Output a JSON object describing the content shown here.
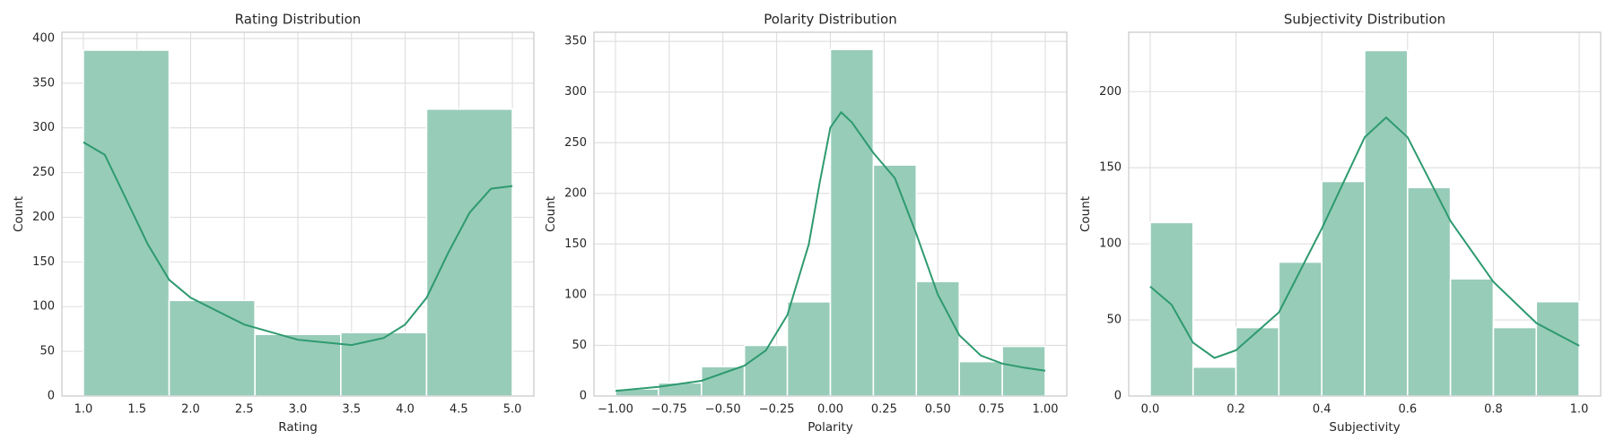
{
  "chart_data": [
    {
      "type": "histogram",
      "title": "Rating Distribution",
      "x_label": "Rating",
      "y_label": "Count",
      "bins": [
        1.0,
        1.8,
        2.6,
        3.4,
        4.2,
        5.0
      ],
      "counts": [
        387,
        107,
        69,
        71,
        321
      ],
      "color": "#97ccb9",
      "line_color": "#2e9a6f",
      "kde": {
        "x": [
          1.0,
          1.2,
          1.4,
          1.6,
          1.8,
          2.0,
          2.5,
          3.0,
          3.5,
          3.8,
          4.0,
          4.2,
          4.4,
          4.6,
          4.8,
          5.0
        ],
        "y": [
          284,
          270,
          220,
          170,
          130,
          110,
          80,
          63,
          57,
          65,
          80,
          110,
          160,
          205,
          232,
          235
        ]
      },
      "xlim": [
        0.8,
        5.2
      ],
      "ylim": [
        0,
        407
      ],
      "xticks": [
        {
          "value": 1.0,
          "label": "1.0"
        },
        1.5,
        {
          "value": 2.0,
          "label": "2.0"
        },
        2.5,
        {
          "value": 3.0,
          "label": "3.0"
        },
        3.5,
        {
          "value": 4.0,
          "label": "4.0"
        },
        4.5,
        {
          "value": 5.0,
          "label": "5.0"
        }
      ],
      "yticks": [
        0,
        50,
        100,
        150,
        200,
        250,
        300,
        350,
        400
      ],
      "grid": true
    },
    {
      "type": "histogram",
      "title": "Polarity Distribution",
      "x_label": "Polarity",
      "y_label": "Count",
      "bins": [
        -1.0,
        -0.8,
        -0.6,
        -0.4,
        -0.2,
        0.0,
        0.2,
        0.4,
        0.6,
        0.8,
        1.0
      ],
      "counts": [
        7,
        13,
        29,
        50,
        93,
        342,
        228,
        113,
        34,
        49
      ],
      "color": "#97ccb9",
      "line_color": "#2e9a6f",
      "kde": {
        "x": [
          -1.0,
          -0.8,
          -0.6,
          -0.4,
          -0.3,
          -0.2,
          -0.1,
          -0.05,
          0.0,
          0.05,
          0.1,
          0.2,
          0.3,
          0.4,
          0.5,
          0.6,
          0.7,
          0.8,
          0.9,
          1.0
        ],
        "y": [
          5,
          9,
          15,
          30,
          45,
          80,
          150,
          210,
          265,
          280,
          270,
          240,
          215,
          160,
          100,
          60,
          40,
          32,
          28,
          25
        ]
      },
      "xlim": [
        -1.1,
        1.1
      ],
      "ylim": [
        0,
        359
      ],
      "xticks": [
        {
          "value": -1.0,
          "label": "−1.00"
        },
        {
          "value": -0.75,
          "label": "−0.75"
        },
        {
          "value": -0.5,
          "label": "−0.50"
        },
        {
          "value": -0.25,
          "label": "−0.25"
        },
        {
          "value": 0.0,
          "label": "0.00"
        },
        {
          "value": 0.25,
          "label": "0.25"
        },
        {
          "value": 0.5,
          "label": "0.50"
        },
        {
          "value": 0.75,
          "label": "0.75"
        },
        {
          "value": 1.0,
          "label": "1.00"
        }
      ],
      "yticks": [
        0,
        50,
        100,
        150,
        200,
        250,
        300,
        350
      ],
      "grid": true
    },
    {
      "type": "histogram",
      "title": "Subjectivity Distribution",
      "x_label": "Subjectivity",
      "y_label": "Count",
      "bins": [
        0.0,
        0.1,
        0.2,
        0.3,
        0.4,
        0.5,
        0.6,
        0.7,
        0.8,
        0.9,
        1.0
      ],
      "counts": [
        114,
        19,
        45,
        88,
        141,
        227,
        137,
        77,
        45,
        62
      ],
      "color": "#97ccb9",
      "line_color": "#2e9a6f",
      "kde": {
        "x": [
          0.0,
          0.05,
          0.1,
          0.15,
          0.2,
          0.3,
          0.4,
          0.5,
          0.55,
          0.6,
          0.7,
          0.8,
          0.9,
          1.0
        ],
        "y": [
          72,
          60,
          35,
          25,
          30,
          55,
          110,
          170,
          183,
          170,
          115,
          75,
          48,
          33
        ]
      },
      "xlim": [
        -0.05,
        1.05
      ],
      "ylim": [
        0,
        239
      ],
      "xticks": [
        {
          "value": 0.0,
          "label": "0.0"
        },
        0.2,
        0.4,
        0.6,
        0.8,
        {
          "value": 1.0,
          "label": "1.0"
        }
      ],
      "yticks": [
        0,
        50,
        100,
        150,
        200
      ],
      "grid": true
    }
  ]
}
